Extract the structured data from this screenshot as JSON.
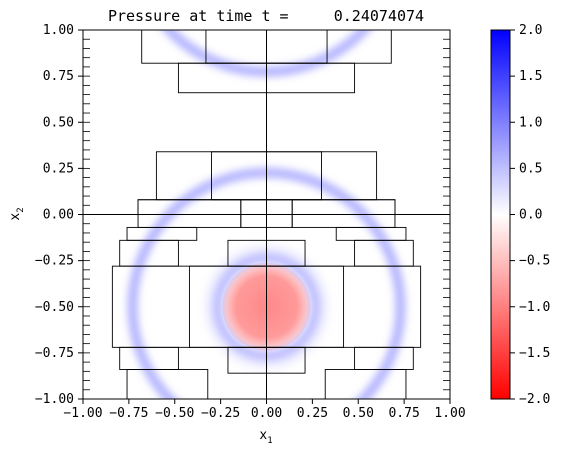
{
  "chart_data": {
    "type": "heatmap",
    "title": "Pressure at time t =     0.24074074",
    "xlabel_base": "x",
    "xlabel_sub": "1",
    "ylabel_base": "x",
    "ylabel_sub": "2",
    "xlim": [
      -1.0,
      1.0
    ],
    "ylim": [
      -1.0,
      1.0
    ],
    "x_ticks": [
      -1.0,
      -0.75,
      -0.5,
      -0.25,
      0.0,
      0.25,
      0.5,
      0.75,
      1.0
    ],
    "x_tick_labels": [
      "−1.00",
      "−0.75",
      "−0.50",
      "−0.25",
      "0.00",
      "0.25",
      "0.50",
      "0.75",
      "1.00"
    ],
    "y_ticks": [
      1.0,
      0.75,
      0.5,
      0.25,
      0.0,
      -0.25,
      -0.5,
      -0.75,
      -1.0
    ],
    "y_tick_labels": [
      "1.00",
      "0.75",
      "0.50",
      "0.25",
      "0.00",
      "−0.25",
      "−0.50",
      "−0.75",
      "−1.00"
    ],
    "colorbar": {
      "range": [
        -2.0,
        2.0
      ],
      "ticks": [
        2.0,
        1.5,
        1.0,
        0.5,
        0.0,
        -0.5,
        -1.0,
        -1.5,
        -2.0
      ],
      "tick_labels": [
        "2.0",
        "1.5",
        "1.0",
        "0.5",
        "0.0",
        "−0.5",
        "−1.0",
        "−1.5",
        "−2.0"
      ],
      "colors": {
        "low": "#ff0000",
        "mid": "#ffffff",
        "high": "#0000ff"
      }
    },
    "field_features": [
      {
        "kind": "negative-disk",
        "center": [
          0.0,
          -0.5
        ],
        "radius": 0.24,
        "value": -0.85
      },
      {
        "kind": "positive-ring",
        "center": [
          0.0,
          -0.5
        ],
        "radius": 0.27,
        "value": 0.5
      },
      {
        "kind": "positive-ring",
        "center": [
          0.0,
          -0.5
        ],
        "radius": 0.73,
        "value": 0.5
      },
      {
        "kind": "positive-ring",
        "center": [
          0.0,
          1.5
        ],
        "radius": 0.73,
        "value": 0.5
      },
      {
        "kind": "positive-ring",
        "center": [
          0.0,
          -0.5
        ],
        "radius": 0.3,
        "value": 0.2
      }
    ],
    "grid_lines": {
      "x": [
        0.0
      ],
      "y": [
        0.0
      ]
    },
    "mesh_boxes": [
      [
        -0.68,
        0.82,
        0.68,
        1.0
      ],
      [
        -0.33,
        0.82,
        0.33,
        1.0
      ],
      [
        -0.48,
        0.66,
        0.48,
        0.82
      ],
      [
        -0.6,
        0.08,
        0.6,
        0.34
      ],
      [
        -0.3,
        0.08,
        0.3,
        0.34
      ],
      [
        -0.7,
        0.0,
        0.7,
        0.08
      ],
      [
        -0.14,
        -0.07,
        0.14,
        0.08
      ],
      [
        -0.7,
        -0.07,
        -0.14,
        0.08
      ],
      [
        0.14,
        -0.07,
        0.7,
        0.08
      ],
      [
        -0.76,
        -0.14,
        -0.38,
        -0.07
      ],
      [
        0.38,
        -0.14,
        0.76,
        -0.07
      ],
      [
        -0.8,
        -0.28,
        -0.48,
        -0.14
      ],
      [
        0.48,
        -0.28,
        0.8,
        -0.14
      ],
      [
        -0.21,
        -0.28,
        0.21,
        -0.14
      ],
      [
        -0.84,
        -0.72,
        0.84,
        -0.28
      ],
      [
        -0.42,
        -0.72,
        0.42,
        -0.28
      ],
      [
        -0.8,
        -0.84,
        -0.48,
        -0.72
      ],
      [
        0.48,
        -0.84,
        0.8,
        -0.72
      ],
      [
        -0.21,
        -0.86,
        0.21,
        -0.72
      ],
      [
        -0.76,
        -1.0,
        -0.32,
        -0.84
      ],
      [
        0.32,
        -1.0,
        0.76,
        -0.84
      ]
    ]
  }
}
